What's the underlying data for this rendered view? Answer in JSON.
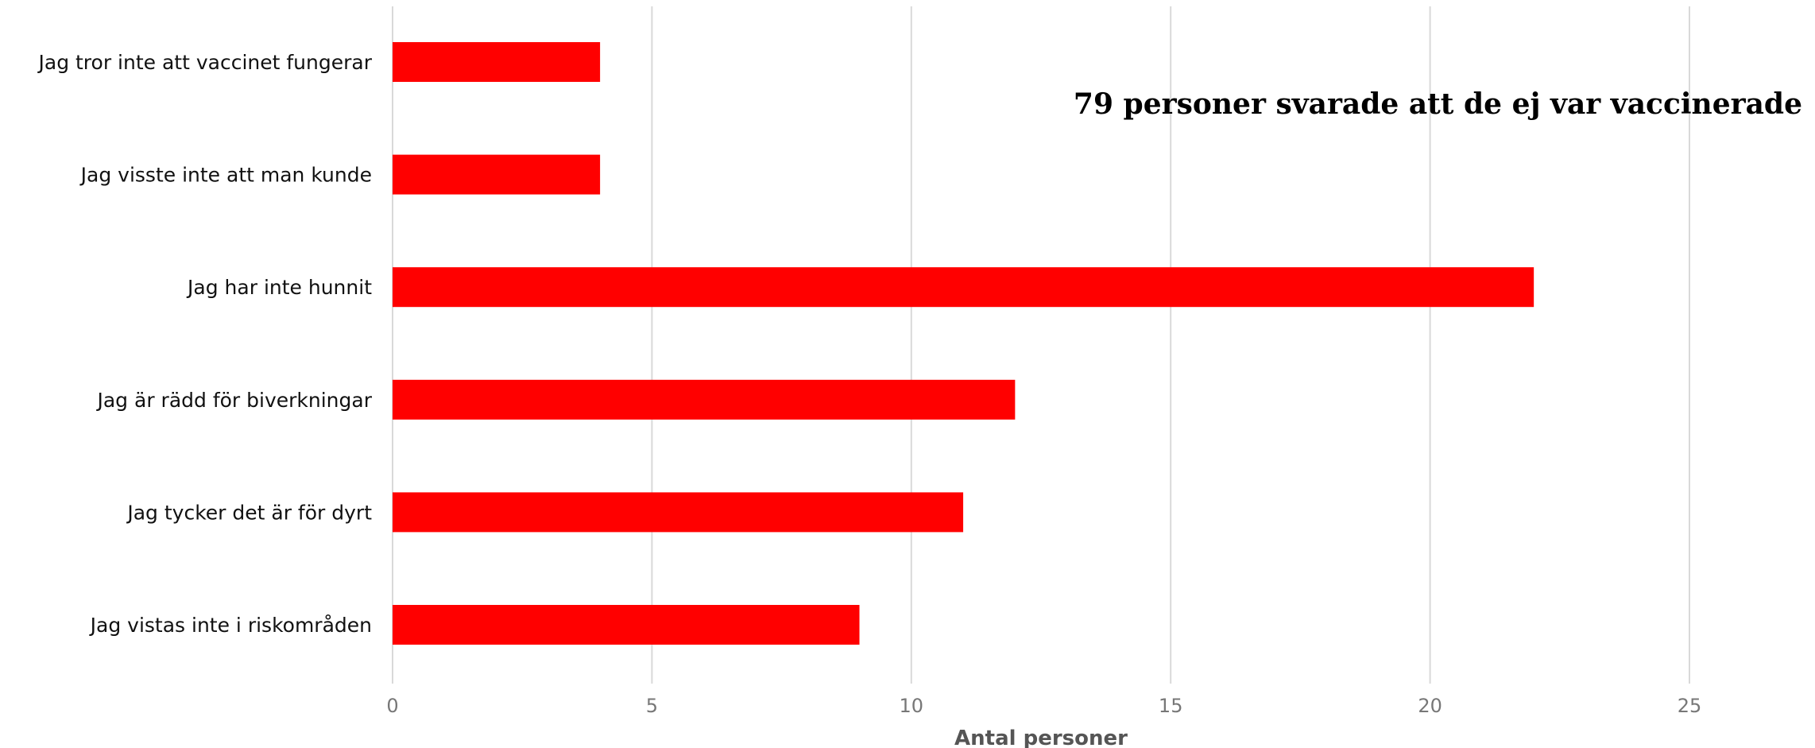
{
  "chart_data": {
    "type": "bar",
    "orientation": "horizontal",
    "title": "79 personer svarade att de ej var vaccinerade",
    "xlabel": "Antal personer",
    "ylabel": "",
    "categories": [
      "Jag tror inte att vaccinet fungerar",
      "Jag visste inte att man kunde",
      "Jag har inte hunnit",
      "Jag är rädd för biverkningar",
      "Jag tycker det är för dyrt",
      "Jag vistas inte i riskområden"
    ],
    "values": [
      4,
      4,
      22,
      12,
      11,
      9
    ],
    "xlim": [
      0,
      25
    ],
    "xticks": [
      0,
      5,
      10,
      15,
      20,
      25
    ],
    "bar_color": "#ff0000",
    "grid": true,
    "legend": "none"
  }
}
